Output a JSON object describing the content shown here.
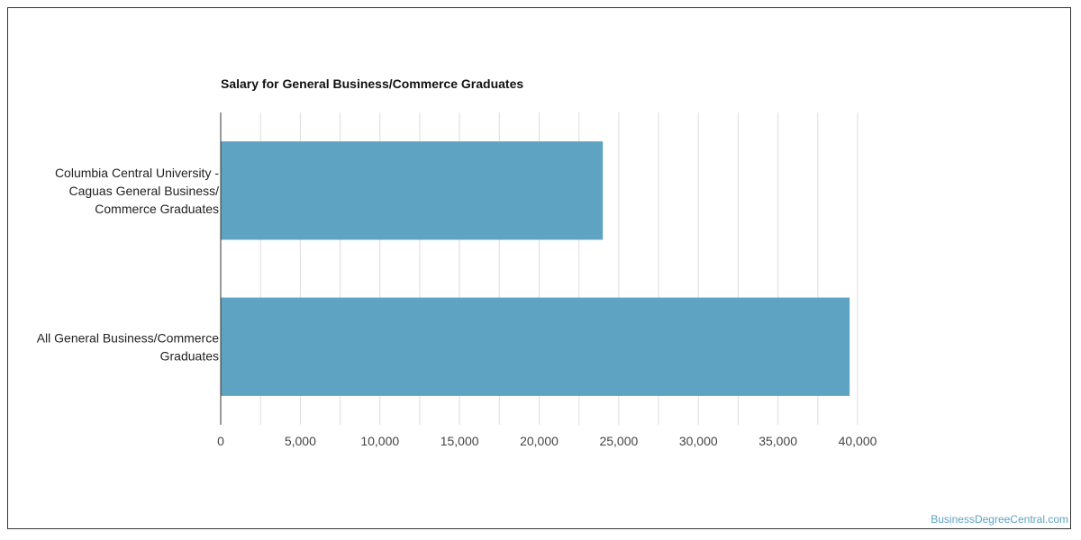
{
  "chart_data": {
    "type": "bar",
    "orientation": "horizontal",
    "title": "Salary for General Business/Commerce Graduates",
    "categories": [
      "Columbia Central University - Caguas General Business/ Commerce Graduates",
      "All General Business/Commerce Graduates"
    ],
    "category_lines": [
      [
        "Columbia Central University -",
        "Caguas General Business/",
        "Commerce Graduates"
      ],
      [
        "All General Business/Commerce",
        "Graduates"
      ]
    ],
    "values": [
      24000,
      39500
    ],
    "xlim": [
      0,
      40000
    ],
    "xticks": [
      0,
      5000,
      10000,
      15000,
      20000,
      25000,
      30000,
      35000,
      40000
    ],
    "xtick_labels": [
      "0",
      "5,000",
      "10,000",
      "15,000",
      "20,000",
      "25,000",
      "30,000",
      "35,000",
      "40,000"
    ],
    "grid": true,
    "legend": "none",
    "bar_color": "#5ea3c1"
  },
  "watermark": "BusinessDegreeCentral.com"
}
